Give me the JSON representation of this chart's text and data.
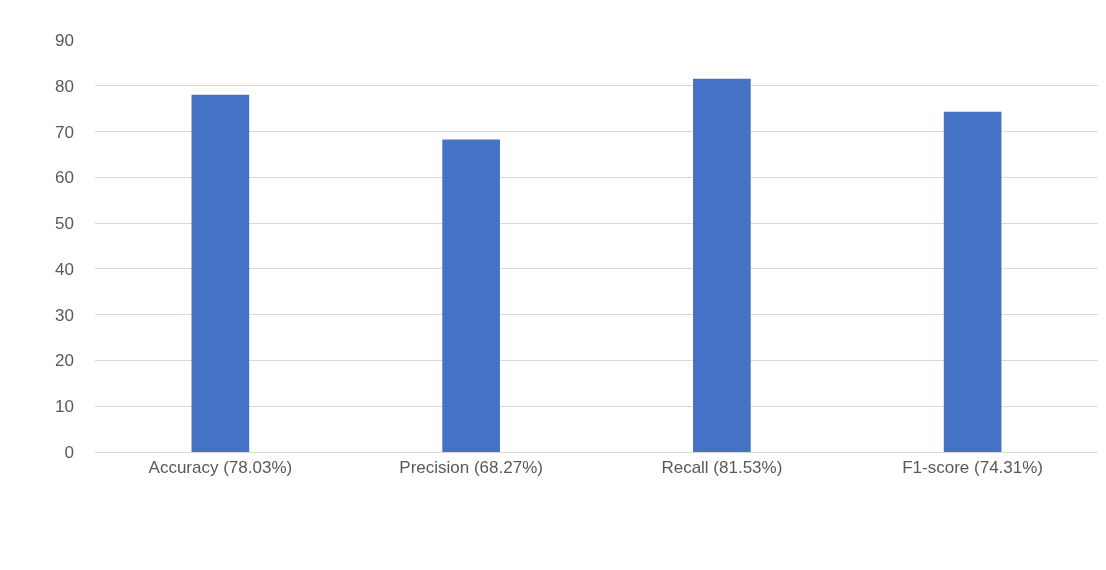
{
  "chart_data": {
    "type": "bar",
    "categories": [
      "Accuracy (78.03%)",
      "Precision (68.27%)",
      "Recall (81.53%)",
      "F1-score (74.31%)"
    ],
    "values": [
      78.03,
      68.27,
      81.53,
      74.31
    ],
    "color": "#4472c4",
    "ylim": [
      0,
      90
    ],
    "yticks": [
      0,
      10,
      20,
      30,
      40,
      50,
      60,
      70,
      80,
      90
    ],
    "grid": "y",
    "legend": false
  }
}
